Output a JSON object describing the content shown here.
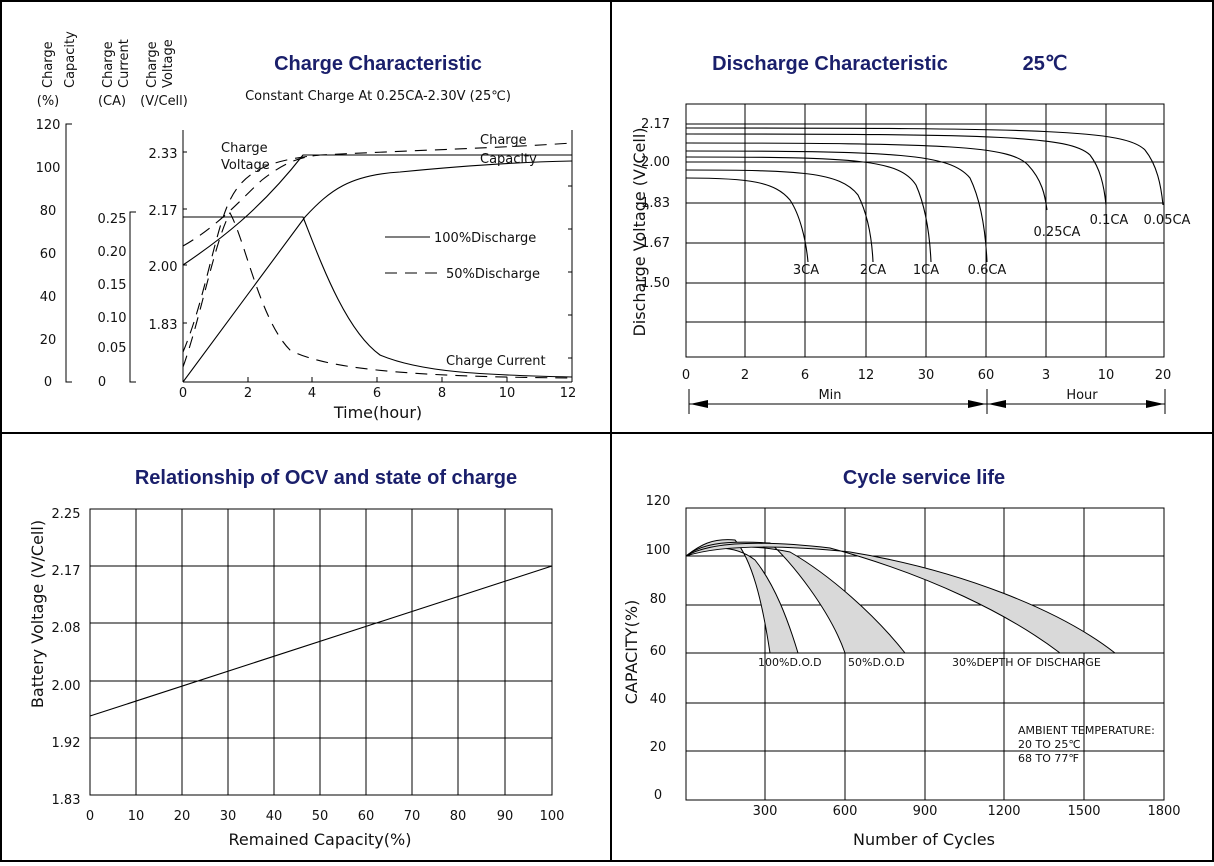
{
  "panels": {
    "charge": {
      "title": "Charge Characteristic",
      "subtitle": "Constant Charge At 0.25CA-2.30V (25℃)",
      "col_headers": [
        "Charge Capacity",
        "Charge Current",
        "Charge Voltage"
      ],
      "unit_headers": [
        "(%)",
        "(CA)",
        "(V/Cell)"
      ],
      "capacity_ticks": [
        "120",
        "100",
        "80",
        "60",
        "40",
        "20",
        "0"
      ],
      "current_ticks": [
        "0.25",
        "0.20",
        "0.15",
        "0.10",
        "0.05",
        "0"
      ],
      "voltage_ticks": [
        "2.33",
        "2.17",
        "2.00",
        "1.83"
      ],
      "x_ticks": [
        "0",
        "2",
        "4",
        "6",
        "8",
        "10",
        "12"
      ],
      "xlabel": "Time(hour)",
      "annotations": {
        "voltage": "Charge Voltage",
        "capacity": "Charge Capacity",
        "current": "Charge Current"
      },
      "legend": {
        "solid": "100%Discharge",
        "dashed": "50%Discharge"
      }
    },
    "discharge": {
      "title": "Discharge Characteristic",
      "temperature": "25℃",
      "ylabel": "Discharge Voltage (V/Cell)",
      "y_ticks": [
        "2.17",
        "2.00",
        "1.83",
        "1.67",
        "1.50"
      ],
      "x_ticks": [
        "0",
        "2",
        "6",
        "12",
        "30",
        "60",
        "3",
        "10",
        "20"
      ],
      "unit_min": "Min",
      "unit_hour": "Hour",
      "rate_labels": [
        "3CA",
        "2CA",
        "1CA",
        "0.6CA",
        "0.25CA",
        "0.1CA",
        "0.05CA"
      ]
    },
    "ocv": {
      "title": "Relationship of OCV and state of charge",
      "ylabel": "Battery Voltage (V/Cell)",
      "xlabel": "Remained Capacity(%)",
      "y_ticks": [
        "2.25",
        "2.17",
        "2.08",
        "2.00",
        "1.92",
        "1.83"
      ],
      "x_ticks": [
        "0",
        "10",
        "20",
        "30",
        "40",
        "50",
        "60",
        "70",
        "80",
        "90",
        "100"
      ]
    },
    "cycle": {
      "title": "Cycle service life",
      "ylabel": "CAPACITY(%)",
      "xlabel": "Number of Cycles",
      "y_ticks": [
        "120",
        "100",
        "80",
        "60",
        "40",
        "20",
        "0"
      ],
      "x_ticks": [
        "300",
        "600",
        "900",
        "1200",
        "1500",
        "1800"
      ],
      "dod_labels": [
        "100%D.O.D",
        "50%D.O.D",
        "30%DEPTH OF DISCHARGE"
      ],
      "ambient": [
        "AMBIENT TEMPERATURE:",
        "20 TO 25℃",
        "68 TO 77℉"
      ]
    }
  },
  "chart_data": [
    {
      "type": "line",
      "title": "Charge Characteristic",
      "subtitle": "Constant Charge At 0.25CA-2.30V (25℃)",
      "xlabel": "Time(hour)",
      "xlim": [
        0,
        12
      ],
      "series": [
        {
          "name": "Charge Voltage",
          "axis": "V/Cell",
          "line": "100%Discharge",
          "points": [
            [
              0,
              1.98
            ],
            [
              1,
              2.06
            ],
            [
              2,
              2.15
            ],
            [
              3,
              2.25
            ],
            [
              3.7,
              2.31
            ],
            [
              12,
              2.31
            ]
          ]
        },
        {
          "name": "Charge Voltage",
          "axis": "V/Cell",
          "line": "50%Discharge",
          "points": [
            [
              0,
              2.03
            ],
            [
              1,
              2.1
            ],
            [
              1.5,
              2.18
            ],
            [
              2,
              2.24
            ],
            [
              2.8,
              2.29
            ],
            [
              3.7,
              2.31
            ],
            [
              12,
              2.31
            ]
          ]
        },
        {
          "name": "Charge Capacity",
          "axis": "%",
          "line": "100%Discharge",
          "points": [
            [
              0,
              0
            ],
            [
              1,
              20
            ],
            [
              2,
              40
            ],
            [
              3,
              60
            ],
            [
              3.8,
              76
            ],
            [
              4.5,
              88
            ],
            [
              5.5,
              95
            ],
            [
              7,
              98
            ],
            [
              9,
              100
            ],
            [
              12,
              101
            ]
          ]
        },
        {
          "name": "Charge Capacity",
          "axis": "%",
          "line": "50%Discharge",
          "points": [
            [
              0,
              50
            ],
            [
              0.5,
              60
            ],
            [
              1,
              75
            ],
            [
              1.4,
              90
            ],
            [
              1.8,
              95
            ],
            [
              3,
              98
            ],
            [
              5,
              100
            ],
            [
              8,
              102
            ],
            [
              12,
              106
            ]
          ]
        },
        {
          "name": "Charge Current",
          "axis": "CA",
          "line": "100%Discharge",
          "points": [
            [
              0,
              0.25
            ],
            [
              3.7,
              0.25
            ],
            [
              4,
              0.2
            ],
            [
              4.5,
              0.14
            ],
            [
              5,
              0.09
            ],
            [
              6,
              0.04
            ],
            [
              7,
              0.02
            ],
            [
              9,
              0.01
            ],
            [
              12,
              0.005
            ]
          ]
        },
        {
          "name": "Charge Current",
          "axis": "CA",
          "line": "50%Discharge",
          "points": [
            [
              0,
              0.07
            ],
            [
              0.5,
              0.15
            ],
            [
              1,
              0.22
            ],
            [
              1.5,
              0.245
            ],
            [
              2,
              0.16
            ],
            [
              2.5,
              0.1
            ],
            [
              3.5,
              0.05
            ],
            [
              5,
              0.025
            ],
            [
              8,
              0.012
            ],
            [
              12,
              0.005
            ]
          ]
        }
      ]
    },
    {
      "type": "line",
      "title": "Discharge Characteristic",
      "ylabel": "Discharge Voltage (V/Cell)",
      "x_categories": [
        "0",
        "2 min",
        "6 min",
        "12 min",
        "30 min",
        "60 min",
        "3 h",
        "10 h",
        "20 h"
      ],
      "series": [
        {
          "name": "3CA",
          "end_time": "~6 min",
          "start_voltage": 1.97,
          "end_voltage": 1.6
        },
        {
          "name": "2CA",
          "end_time": "~12 min",
          "start_voltage": 2.01,
          "end_voltage": 1.6
        },
        {
          "name": "1CA",
          "end_time": "~30 min",
          "start_voltage": 2.04,
          "end_voltage": 1.6
        },
        {
          "name": "0.6CA",
          "end_time": "~60 min",
          "start_voltage": 2.06,
          "end_voltage": 1.6
        },
        {
          "name": "0.25CA",
          "end_time": "~3 h",
          "start_voltage": 2.1,
          "end_voltage": 1.75
        },
        {
          "name": "0.1CA",
          "end_time": "~10 h",
          "start_voltage": 2.13,
          "end_voltage": 1.8
        },
        {
          "name": "0.05CA",
          "end_time": "~20 h",
          "start_voltage": 2.15,
          "end_voltage": 1.8
        }
      ]
    },
    {
      "type": "line",
      "title": "Relationship of OCV and state of charge",
      "xlabel": "Remained Capacity(%)",
      "ylabel": "Battery Voltage (V/Cell)",
      "xlim": [
        0,
        100
      ],
      "series": [
        {
          "name": "OCV",
          "x": [
            0,
            100
          ],
          "y": [
            1.95,
            2.17
          ]
        }
      ]
    },
    {
      "type": "area",
      "title": "Cycle service life",
      "xlabel": "Number of Cycles",
      "ylabel": "CAPACITY(%)",
      "xlim": [
        0,
        1800
      ],
      "ylim": [
        0,
        120
      ],
      "series": [
        {
          "name": "100%D.O.D",
          "upper": [
            [
              0,
              100
            ],
            [
              60,
              103
            ],
            [
              160,
              103
            ],
            [
              260,
              95
            ],
            [
              360,
              78
            ],
            [
              420,
              60
            ]
          ],
          "lower": [
            [
              0,
              100
            ],
            [
              60,
              104
            ],
            [
              130,
              103
            ],
            [
              230,
              92
            ],
            [
              300,
              72
            ],
            [
              320,
              60
            ]
          ]
        },
        {
          "name": "50%D.O.D",
          "upper": [
            [
              0,
              100
            ],
            [
              100,
              103
            ],
            [
              330,
              102
            ],
            [
              520,
              93
            ],
            [
              720,
              76
            ],
            [
              830,
              60
            ]
          ],
          "lower": [
            [
              0,
              100
            ],
            [
              80,
              103
            ],
            [
              270,
              102
            ],
            [
              420,
              92
            ],
            [
              560,
              76
            ],
            [
              640,
              60
            ]
          ]
        },
        {
          "name": "30%DEPTH OF DISCHARGE",
          "upper": [
            [
              0,
              100
            ],
            [
              130,
              103
            ],
            [
              580,
              100
            ],
            [
              1000,
              88
            ],
            [
              1380,
              72
            ],
            [
              1610,
              60
            ]
          ],
          "lower": [
            [
              0,
              100
            ],
            [
              100,
              103
            ],
            [
              480,
              101
            ],
            [
              880,
              87
            ],
            [
              1200,
              72
            ],
            [
              1410,
              60
            ]
          ]
        }
      ]
    }
  ]
}
